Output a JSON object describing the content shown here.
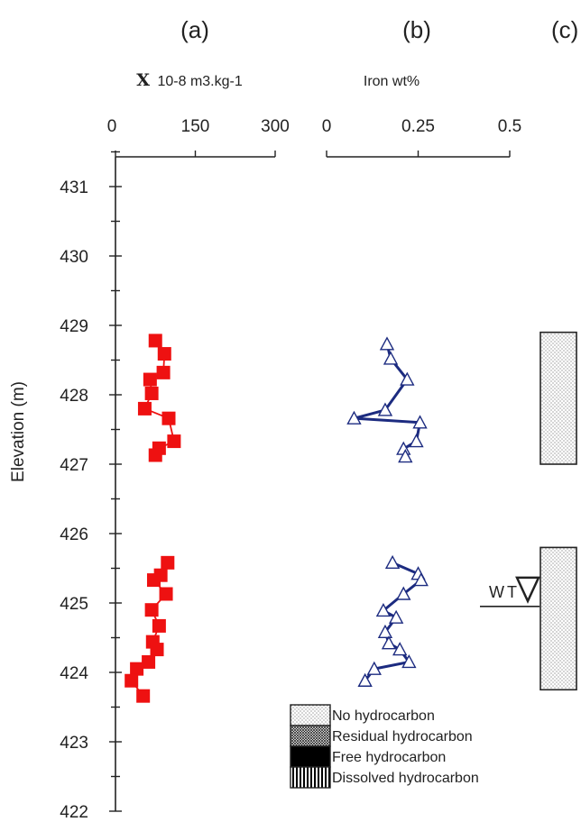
{
  "panel_letters": [
    "(a)",
    "(b)",
    "(c)"
  ],
  "ylabel": "Elevation (m)",
  "yticks": [
    "422",
    "423",
    "424",
    "425",
    "426",
    "427",
    "428",
    "429",
    "430",
    "431"
  ],
  "water_table": {
    "label": "WT",
    "elevation": 424.95
  },
  "legend": [
    {
      "label": "No hydrocarbon",
      "pattern": "dots"
    },
    {
      "label": "Residual hydrocarbon",
      "pattern": "crosshatch"
    },
    {
      "label": "Free hydrocarbon",
      "pattern": "solid"
    },
    {
      "label": "Dissolved hydrocarbon",
      "pattern": "vertical-lines"
    }
  ],
  "chart_data": [
    {
      "panel": "(a)",
      "type": "line",
      "xlabel_symbol": "X",
      "xlabel_units": "10-8 m3.kg-1",
      "xticks": [
        "0",
        "150",
        "300"
      ],
      "xlim": [
        0,
        300
      ],
      "ylim": [
        422,
        431.6
      ],
      "ylabel": "Elevation (m)",
      "series": [
        {
          "marker": "square",
          "color": "#ee1111",
          "segments": [
            [
              [
                75,
                428.78
              ],
              [
                92,
                428.59
              ],
              [
                90,
                428.32
              ],
              [
                65,
                428.22
              ],
              [
                68,
                428.02
              ],
              [
                55,
                427.8
              ],
              [
                100,
                427.66
              ],
              [
                110,
                427.33
              ],
              [
                82,
                427.23
              ],
              [
                75,
                427.13
              ]
            ],
            [
              [
                98,
                425.58
              ],
              [
                85,
                425.4
              ],
              [
                72,
                425.33
              ],
              [
                95,
                425.13
              ],
              [
                68,
                424.9
              ],
              [
                82,
                424.67
              ],
              [
                70,
                424.44
              ],
              [
                78,
                424.33
              ],
              [
                62,
                424.15
              ],
              [
                40,
                424.05
              ],
              [
                30,
                423.88
              ],
              [
                52,
                423.66
              ]
            ]
          ]
        }
      ]
    },
    {
      "panel": "(b)",
      "type": "line",
      "xlabel": "Iron wt%",
      "xticks": [
        "0",
        "0.25",
        "0.5"
      ],
      "xlim": [
        0,
        0.5
      ],
      "ylim": [
        422,
        431.6
      ],
      "series": [
        {
          "marker": "open-triangle",
          "color": "#1c2b80",
          "segments": [
            [
              [
                0.165,
                428.73
              ],
              [
                0.175,
                428.52
              ],
              [
                0.22,
                428.22
              ],
              [
                0.16,
                427.78
              ],
              [
                0.075,
                427.66
              ],
              [
                0.255,
                427.6
              ],
              [
                0.245,
                427.33
              ],
              [
                0.21,
                427.22
              ],
              [
                0.215,
                427.11
              ]
            ],
            [
              [
                0.18,
                425.58
              ],
              [
                0.25,
                425.42
              ],
              [
                0.258,
                425.33
              ],
              [
                0.21,
                425.13
              ],
              [
                0.155,
                424.89
              ],
              [
                0.19,
                424.79
              ],
              [
                0.16,
                424.58
              ],
              [
                0.17,
                424.42
              ],
              [
                0.2,
                424.33
              ],
              [
                0.225,
                424.15
              ],
              [
                0.13,
                424.05
              ],
              [
                0.105,
                423.88
              ]
            ]
          ]
        }
      ]
    },
    {
      "panel": "(c)",
      "type": "bar",
      "ylim": [
        422,
        431.6
      ],
      "intervals": [
        {
          "top": 428.9,
          "bottom": 427.0,
          "pattern": "dots"
        },
        {
          "top": 425.8,
          "bottom": 423.75,
          "pattern": "dots"
        }
      ]
    }
  ]
}
